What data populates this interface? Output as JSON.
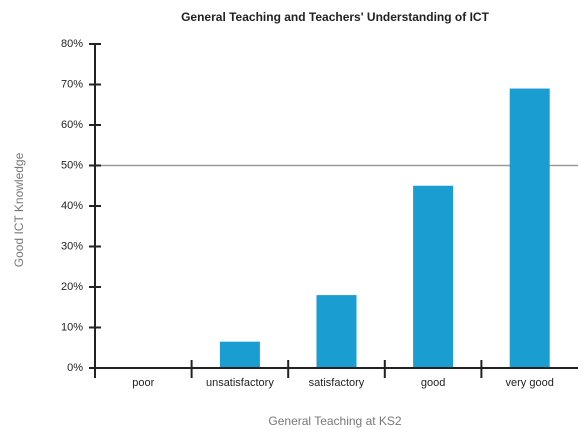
{
  "chart_data": {
    "type": "bar",
    "title": "General Teaching and Teachers' Understanding of ICT",
    "x_label": "General Teaching at KS2",
    "y_label": "Good ICT Knowledge",
    "categories": [
      "poor",
      "unsatisfactory",
      "satisfactory",
      "good",
      "very good"
    ],
    "values": [
      0,
      6.5,
      18,
      45,
      69
    ],
    "color": "#1a9dd0",
    "ylim": [
      0,
      80
    ],
    "yticks": [
      {
        "value": 0,
        "label": "0%"
      },
      {
        "value": 10,
        "label": "10%"
      },
      {
        "value": 20,
        "label": "20%"
      },
      {
        "value": 30,
        "label": "30%"
      },
      {
        "value": 40,
        "label": "40%"
      },
      {
        "value": 50,
        "label": "50%"
      },
      {
        "value": 60,
        "label": "60%"
      },
      {
        "value": 70,
        "label": "70%"
      },
      {
        "value": 80,
        "label": "80%"
      }
    ],
    "reference_line": 50,
    "grid": false
  }
}
